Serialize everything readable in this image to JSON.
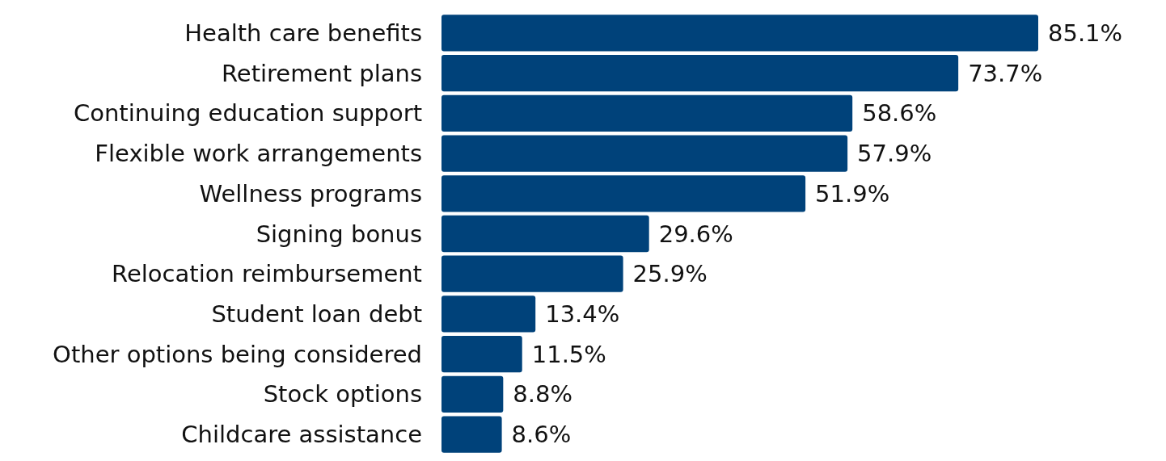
{
  "chart_data": {
    "type": "bar",
    "orientation": "horizontal",
    "categories": [
      "Health care benefits",
      "Retirement plans",
      "Continuing education support",
      "Flexible work arrangements",
      "Wellness programs",
      "Signing bonus",
      "Relocation reimbursement",
      "Student loan debt",
      "Other options being considered",
      "Stock options",
      "Childcare assistance"
    ],
    "values": [
      85.1,
      73.7,
      58.6,
      57.9,
      51.9,
      29.6,
      25.9,
      13.4,
      11.5,
      8.8,
      8.6
    ],
    "value_labels": [
      "85.1%",
      "73.7%",
      "58.6%",
      "57.9%",
      "51.9%",
      "29.6%",
      "25.9%",
      "13.4%",
      "11.5%",
      "8.8%",
      "8.6%"
    ],
    "color": "#00427a"
  }
}
